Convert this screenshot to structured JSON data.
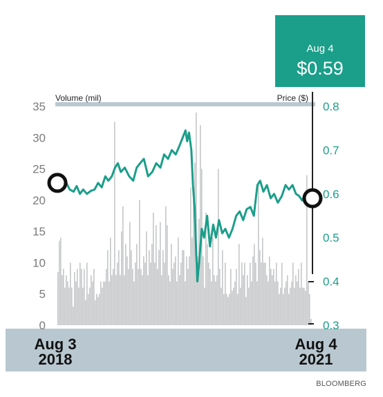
{
  "callout": {
    "date": "Aug 4",
    "price": "$0.59"
  },
  "source": "BLOOMBERG",
  "colors": {
    "line": "#1b9e8a",
    "bars": "#c4c6c8",
    "band": "#b9c8d0",
    "axis_text": "#7b7b7b"
  },
  "chart_data": {
    "type": "bar+line",
    "left_axis": {
      "label": "Volume (mil)",
      "ylim": [
        0,
        35
      ],
      "ticks": [
        0,
        5,
        10,
        15,
        20,
        25,
        30,
        35
      ]
    },
    "right_axis": {
      "label": "Price ($)",
      "ylim": [
        0.3,
        0.8
      ],
      "ticks": [
        0.3,
        0.4,
        0.5,
        0.6,
        0.7,
        0.8
      ]
    },
    "x_labels": [
      {
        "month": "Aug 3",
        "year": "2018"
      },
      {
        "month": "Aug 4",
        "year": "2021"
      }
    ],
    "x_range": [
      "2018-08-03",
      "2021-08-04"
    ],
    "volume": [
      8.5,
      13.5,
      14,
      8,
      9,
      6,
      8,
      7,
      6,
      10,
      6,
      3,
      8.5,
      7,
      9,
      6,
      10,
      9,
      6,
      9,
      4,
      10,
      5,
      6,
      8,
      7,
      9,
      4,
      5,
      4.5,
      5,
      7,
      6,
      7,
      7,
      9,
      12,
      7,
      14,
      8,
      9,
      32.5,
      8,
      10,
      12,
      8,
      15,
      19,
      8,
      13,
      11,
      9,
      16.5,
      12,
      9,
      7,
      10,
      13,
      9,
      20,
      9,
      8,
      11,
      10,
      15,
      8,
      12,
      10,
      13,
      18,
      10,
      16,
      9,
      12,
      16.5,
      8,
      12,
      10,
      19,
      16,
      8,
      7,
      13,
      9,
      10,
      11,
      7,
      14,
      8,
      10,
      12,
      12,
      7,
      11,
      9,
      11,
      22,
      14,
      20,
      26,
      34,
      11,
      17,
      32,
      25,
      11,
      6,
      18,
      13,
      10,
      9,
      7,
      14,
      8,
      7,
      8,
      25,
      9,
      6,
      12,
      5,
      10,
      5,
      4.5,
      5,
      9,
      5.5,
      6,
      7,
      9,
      5,
      13,
      6,
      10,
      8,
      10,
      4.5,
      8,
      6,
      10,
      7,
      11,
      13,
      10,
      7,
      23,
      12,
      10,
      14,
      10,
      10,
      8,
      7,
      11,
      9,
      8,
      9,
      7,
      10,
      7,
      5,
      6,
      10,
      5,
      6,
      7,
      8,
      5,
      6,
      7,
      10,
      6,
      8,
      7,
      9,
      6,
      10,
      6,
      6,
      5.5,
      24,
      7,
      5,
      1
    ],
    "price": [
      [
        "2018-08-03",
        0.625
      ],
      [
        "2018-08-20",
        0.62
      ],
      [
        "2018-09-08",
        0.628
      ],
      [
        "2018-09-25",
        0.61
      ],
      [
        "2018-10-12",
        0.605
      ],
      [
        "2018-10-25",
        0.618
      ],
      [
        "2018-11-08",
        0.6
      ],
      [
        "2018-11-22",
        0.61
      ],
      [
        "2018-12-08",
        0.6
      ],
      [
        "2018-12-25",
        0.607
      ],
      [
        "2019-01-10",
        0.61
      ],
      [
        "2019-01-25",
        0.625
      ],
      [
        "2019-02-10",
        0.615
      ],
      [
        "2019-02-25",
        0.64
      ],
      [
        "2019-03-10",
        0.63
      ],
      [
        "2019-03-25",
        0.64
      ],
      [
        "2019-04-08",
        0.66
      ],
      [
        "2019-04-20",
        0.67
      ],
      [
        "2019-05-03",
        0.65
      ],
      [
        "2019-05-20",
        0.66
      ],
      [
        "2019-06-08",
        0.64
      ],
      [
        "2019-06-25",
        0.63
      ],
      [
        "2019-07-10",
        0.66
      ],
      [
        "2019-07-25",
        0.67
      ],
      [
        "2019-08-10",
        0.68
      ],
      [
        "2019-08-28",
        0.64
      ],
      [
        "2019-09-15",
        0.65
      ],
      [
        "2019-10-02",
        0.67
      ],
      [
        "2019-10-20",
        0.66
      ],
      [
        "2019-11-05",
        0.69
      ],
      [
        "2019-11-22",
        0.68
      ],
      [
        "2019-12-08",
        0.7
      ],
      [
        "2019-12-25",
        0.69
      ],
      [
        "2020-01-10",
        0.71
      ],
      [
        "2020-01-25",
        0.73
      ],
      [
        "2020-02-05",
        0.745
      ],
      [
        "2020-02-12",
        0.72
      ],
      [
        "2020-02-20",
        0.74
      ],
      [
        "2020-03-01",
        0.7
      ],
      [
        "2020-03-08",
        0.62
      ],
      [
        "2020-03-15",
        0.57
      ],
      [
        "2020-03-21",
        0.48
      ],
      [
        "2020-03-27",
        0.4
      ],
      [
        "2020-04-05",
        0.45
      ],
      [
        "2020-04-15",
        0.52
      ],
      [
        "2020-04-25",
        0.5
      ],
      [
        "2020-05-08",
        0.55
      ],
      [
        "2020-05-20",
        0.48
      ],
      [
        "2020-06-03",
        0.53
      ],
      [
        "2020-06-15",
        0.5
      ],
      [
        "2020-06-28",
        0.54
      ],
      [
        "2020-07-12",
        0.51
      ],
      [
        "2020-07-25",
        0.52
      ],
      [
        "2020-08-10",
        0.5
      ],
      [
        "2020-08-25",
        0.52
      ],
      [
        "2020-09-10",
        0.55
      ],
      [
        "2020-09-25",
        0.56
      ],
      [
        "2020-10-10",
        0.54
      ],
      [
        "2020-10-25",
        0.565
      ],
      [
        "2020-11-10",
        0.57
      ],
      [
        "2020-11-25",
        0.55
      ],
      [
        "2020-12-10",
        0.62
      ],
      [
        "2020-12-22",
        0.63
      ],
      [
        "2021-01-05",
        0.605
      ],
      [
        "2021-01-20",
        0.62
      ],
      [
        "2021-02-05",
        0.59
      ],
      [
        "2021-02-20",
        0.6
      ],
      [
        "2021-03-08",
        0.58
      ],
      [
        "2021-03-25",
        0.595
      ],
      [
        "2021-04-10",
        0.62
      ],
      [
        "2021-04-25",
        0.61
      ],
      [
        "2021-05-10",
        0.62
      ],
      [
        "2021-05-25",
        0.6
      ],
      [
        "2021-06-08",
        0.595
      ],
      [
        "2021-06-20",
        0.585
      ],
      [
        "2021-07-05",
        0.6
      ],
      [
        "2021-07-20",
        0.59
      ],
      [
        "2021-08-04",
        0.59
      ]
    ],
    "markers": [
      [
        "2018-08-03",
        0.625
      ],
      [
        "2021-08-04",
        0.59
      ]
    ],
    "grid": false
  }
}
